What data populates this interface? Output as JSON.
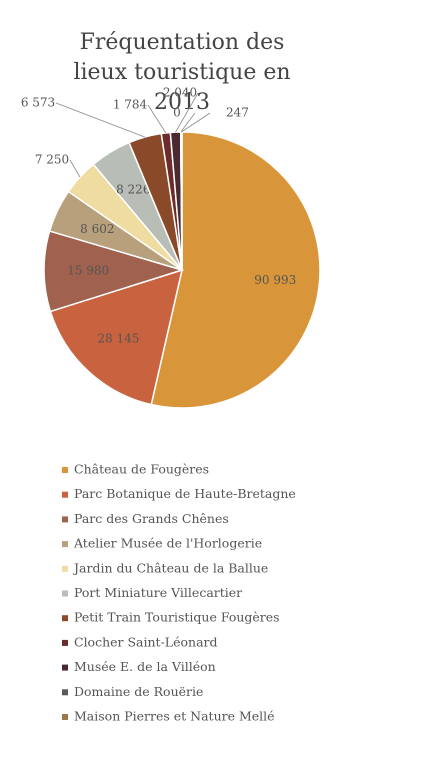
{
  "chart_data": {
    "type": "pie",
    "title": "Fréquentation des lieux touristique en 2013",
    "categories": [
      "Château de Fougères",
      "Parc Botanique de Haute-Bretagne",
      "Parc des Grands Chênes",
      "Atelier Musée de l'Horlogerie",
      "Jardin du Château de la Ballue",
      "Port Miniature Villecartier",
      "Petit Train Touristique Fougères",
      "Clocher Saint-Léonard",
      "Musée E. de la Villéon",
      "Domaine de Rouërie",
      "Maison Pierres et Nature Mellé"
    ],
    "values": [
      90993,
      28145,
      15980,
      8602,
      7250,
      8226,
      6573,
      1784,
      2040,
      0,
      247
    ],
    "value_labels": [
      "90 993",
      "28 145",
      "15 980",
      "8 602",
      "7 250",
      "8 226",
      "6 573",
      "1 784",
      "2 040",
      "0",
      "247"
    ],
    "colors": [
      "#d9953a",
      "#c9623f",
      "#a0614f",
      "#b8a07c",
      "#efdca0",
      "#b8bdb6",
      "#8a4a2a",
      "#6e2b2b",
      "#4a2a30",
      "#5a5a5a",
      "#9a7a4a"
    ],
    "legend": "bottom"
  }
}
